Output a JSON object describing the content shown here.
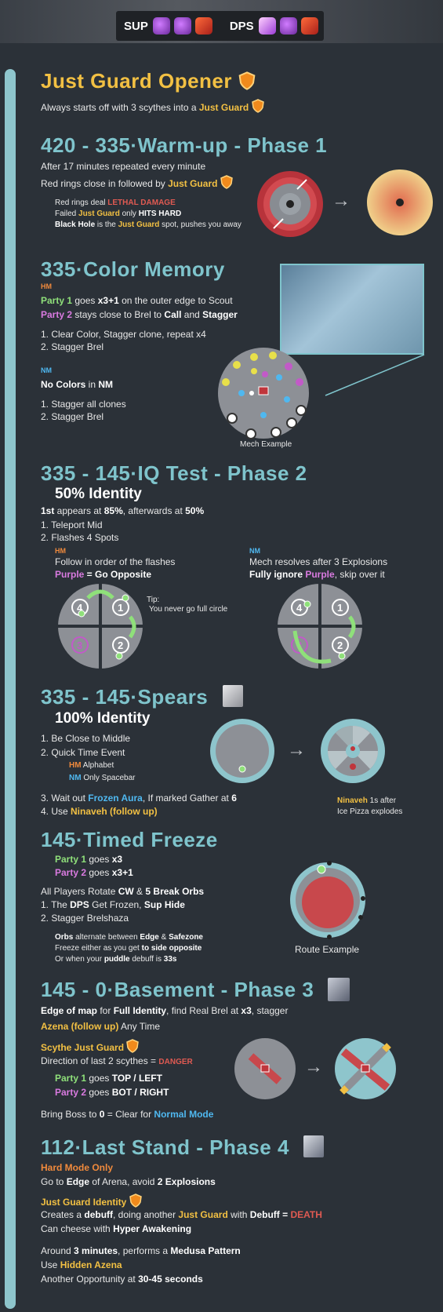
{
  "header": {
    "sup_label": "SUP",
    "dps_label": "DPS",
    "icons": [
      "potion-icon",
      "bomb-icon",
      "card-icon"
    ]
  },
  "colors": {
    "teal": "#7fc4cc",
    "gold": "#f2c043",
    "red": "#e05a52",
    "green": "#8fe07a",
    "pink": "#d97ae0",
    "orange": "#f08a3c",
    "blue": "#4fb8f0",
    "background": "#2b3138"
  },
  "s1": {
    "title": "Just Guard Opener",
    "line_a": "Always starts off with 3 scythes into a ",
    "line_b": "Just Guard"
  },
  "s2": {
    "title_a": "420 - 335",
    "dot": "·",
    "title_b": "Warm-up",
    "dash": " - ",
    "title_c": "Phase 1",
    "l1": "After 17 minutes repeated every minute",
    "l2a": "Red rings close in followed by ",
    "l2b": "Just Guard",
    "n1a": "Red rings deal ",
    "n1b": "LETHAL DAMAGE",
    "n2a": "Failed ",
    "n2b": "Just Guard",
    "n2c": " only ",
    "n2d": "HITS HARD",
    "n3a": "Black Hole",
    "n3b": " is the ",
    "n3c": "Just Guard",
    "n3d": " spot, pushes you away",
    "arrow": "→"
  },
  "s3": {
    "title_a": "335",
    "dot": "·",
    "title_b": "Color Memory",
    "hm": "HM",
    "p1a": "Party 1",
    "p1b": " goes ",
    "p1c": "x3+1",
    "p1d": " on the outer edge to Scout",
    "p2a": "Party 2",
    "p2b": " stays close to Brel to ",
    "p2c": "Call",
    "p2d": " and ",
    "p2e": "Stagger",
    "hm1": "1.  Clear Color, Stagger clone, repeat x4",
    "hm2": "2.  Stagger Brel",
    "nm": "NM",
    "nm_a": "No Colors",
    "nm_b": " in ",
    "nm_c": "NM",
    "nm1": "1.  Stagger all clones",
    "nm2": "2.  Stagger Brel",
    "caption": "Mech Example"
  },
  "s4": {
    "title_a": "335 - 145",
    "dot": "·",
    "title_b": "IQ Test",
    "dash": " - ",
    "title_c": "Phase 2",
    "sub": "50% Identity",
    "l1a": "1st",
    "l1b": " appears at ",
    "l1c": "85%",
    "l1d": ", afterwards at ",
    "l1e": "50%",
    "l2": "1.  Teleport Mid",
    "l3": "2.  Flashes 4 Spots",
    "hm": "HM",
    "hm_a": "Follow in order of the flashes",
    "hm_b1": "Purple",
    "hm_b2": " = Go ",
    "hm_b3": "Opposite",
    "tip_a": "Tip:",
    "tip_b": "You never go full circle",
    "nm": "NM",
    "nm_a": "Mech resolves after 3 Explosions",
    "nm_b1": "Fully ignore ",
    "nm_b2": "Purple",
    "nm_b3": ", skip over it",
    "n1": "1",
    "n2": "2",
    "n3": "3",
    "n4": "4"
  },
  "s5": {
    "title_a": "335 - 145",
    "dot": "·",
    "title_b": "Spears",
    "sub": "100% Identity",
    "l1": "1.  Be Close to Middle",
    "l2": "2.  Quick Time Event",
    "hm_t": "HM",
    "hm_v": " Alphabet",
    "nm_t": "NM",
    "nm_v": " Only Spacebar",
    "l3a": "3.  Wait out ",
    "l3b": "Frozen Aura",
    "l3c": ", If marked Gather at ",
    "l3d": "6",
    "l4a": "4.  Use ",
    "l4b": "Ninaveh (follow up)",
    "note_a": "Ninaveh",
    "note_b": " 1s after",
    "note_c": "Ice Pizza explodes",
    "arrow": "→"
  },
  "s6": {
    "title_a": "145",
    "dot": "·",
    "title_b": "Timed Freeze",
    "p1a": "Party 1",
    "p1b": " goes ",
    "p1c": "x3",
    "p2a": "Party 2",
    "p2b": " goes ",
    "p2c": "x3+1",
    "l1a": "All Players Rotate ",
    "l1b": "CW",
    "l1c": " & ",
    "l1d": "5 Break Orbs",
    "l2a": "1.  The ",
    "l2b": "DPS",
    "l2c": " Get Frozen, ",
    "l2d": "Sup Hide",
    "l3": "2.  Stagger Brelshaza",
    "n1a": "Orbs",
    "n1b": " alternate between ",
    "n1c": "Edge",
    "n1d": " & ",
    "n1e": "Safezone",
    "n2a": "Freeze either as you get ",
    "n2b": "to side opposite",
    "n3a": "Or when your ",
    "n3b": "puddle",
    "n3c": " debuff is ",
    "n3d": "33s",
    "caption": "Route Example"
  },
  "s7": {
    "title_a": "145 - 0",
    "dot": "·",
    "title_b": "Basement",
    "dash": " - ",
    "title_c": "Phase 3",
    "l1a": "Edge of map",
    "l1b": " for ",
    "l1c": "Full Identity",
    "l1d": ", find Real Brel at ",
    "l1e": "x3",
    "l1f": ", stagger",
    "l2a": "Azena (follow up)",
    "l2b": " Any Time",
    "sj": "Scythe Just Guard",
    "dir_a": "Direction of last 2 scythes = ",
    "dir_b": "DANGER",
    "p1a": "Party 1",
    "p1b": " goes ",
    "p1c": "TOP / LEFT",
    "p2a": "Party 2",
    "p2b": " goes ",
    "p2c": "BOT / RIGHT",
    "l3a": "Bring Boss to ",
    "l3b": "0",
    "l3c": " = Clear for ",
    "l3d": "Normal Mode",
    "arrow": "→"
  },
  "s8": {
    "title_a": "112",
    "dot": "·",
    "title_b": "Last Stand",
    "dash": " - ",
    "title_c": "Phase 4",
    "hmo": "Hard Mode Only",
    "l1a": "Go to ",
    "l1b": "Edge",
    "l1c": " of Arena, avoid ",
    "l1d": "2 Explosions",
    "jgi": "Just Guard Identity",
    "l2a": "Creates a ",
    "l2b": "debuff",
    "l2c": ", doing another ",
    "l2d": "Just Guard",
    "l2e": " with ",
    "l2f": "Debuff",
    "l2g": " = ",
    "l2h": "DEATH",
    "l3a": "Can cheese with ",
    "l3b": "Hyper Awakening",
    "l4a": "Around ",
    "l4b": "3 minutes",
    "l4c": ", performs a ",
    "l4d": "Medusa Pattern",
    "l5a": "Use ",
    "l5b": "Hidden Azena",
    "l6a": "Another Opportunity at ",
    "l6b": "30-45 seconds"
  }
}
